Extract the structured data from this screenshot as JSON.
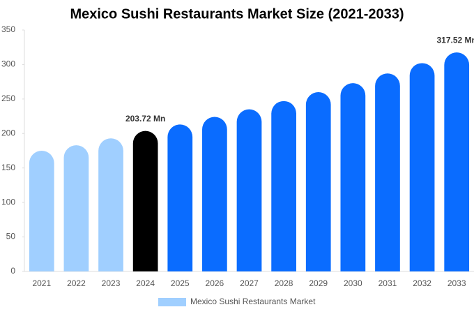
{
  "chart_data": {
    "type": "bar",
    "title": "Mexico Sushi Restaurants Market Size (2021-2033)",
    "categories": [
      "2021",
      "2022",
      "2023",
      "2024",
      "2025",
      "2026",
      "2027",
      "2028",
      "2029",
      "2030",
      "2031",
      "2032",
      "2033"
    ],
    "series": [
      {
        "name": "Mexico Sushi Restaurants Market",
        "color": "#a0cfff",
        "values": [
          175,
          183,
          193,
          203.72,
          213,
          224,
          235,
          247,
          260,
          273,
          287,
          302,
          317.52
        ],
        "value_labels": [
          null,
          null,
          null,
          "203.72 Mn",
          null,
          null,
          null,
          null,
          null,
          null,
          null,
          null,
          "317.52 Mn"
        ],
        "colors": [
          "#a0cfff",
          "#a0cfff",
          "#a0cfff",
          "#000000",
          "#0a6cff",
          "#0a6cff",
          "#0a6cff",
          "#0a6cff",
          "#0a6cff",
          "#0a6cff",
          "#0a6cff",
          "#0a6cff",
          "#0a6cff"
        ]
      }
    ],
    "ylim": [
      0,
      350
    ],
    "yticks": [
      0,
      50,
      100,
      150,
      200,
      250,
      300,
      350
    ],
    "grid": false
  }
}
